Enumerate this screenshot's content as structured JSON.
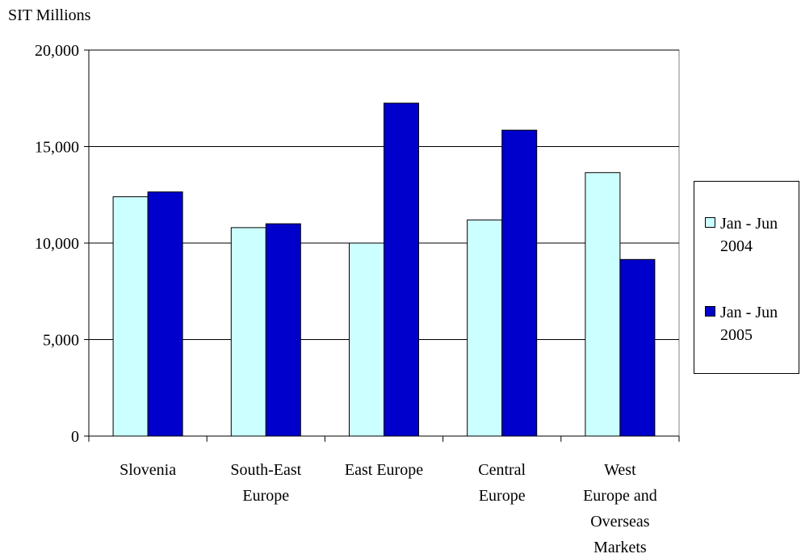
{
  "chart_data": {
    "type": "bar",
    "ylabel": "SIT Millions",
    "ylim": [
      0,
      20000
    ],
    "yticks": [
      0,
      5000,
      10000,
      15000,
      20000
    ],
    "ytick_labels": [
      "0",
      "5,000",
      "10,000",
      "15,000",
      "20,000"
    ],
    "categories": [
      "Slovenia",
      "South-East\nEurope",
      "East Europe",
      "Central\nEurope",
      "West\nEurope and\nOverseas\nMarkets"
    ],
    "series": [
      {
        "name": "Jan - Jun\n2004",
        "color": "#ccffff",
        "values": [
          12400,
          10800,
          10000,
          11200,
          13650
        ]
      },
      {
        "name": "Jan - Jun\n2005",
        "color": "#0000cc",
        "values": [
          12650,
          11000,
          17250,
          15850,
          9150
        ]
      }
    ],
    "grid": true,
    "legend_position": "right"
  }
}
